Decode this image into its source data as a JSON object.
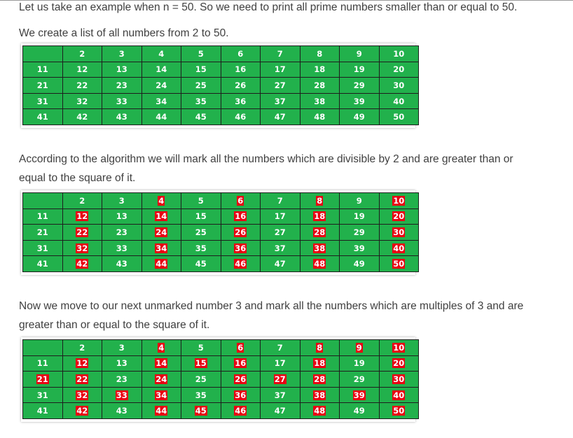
{
  "texts": {
    "p1": "Let us take an example when n = 50. So we need to print all prime numbers smaller than or equal to 50.",
    "p2": "We create a list of all numbers from 2 to 50.",
    "p3a": "According to the algorithm we will mark all the numbers which are divisible by 2 and are greater than or",
    "p3b": "equal to the square of it.",
    "p4a": "Now we move to our next unmarked number 3 and mark all the numbers which are multiples of 3 and are",
    "p4b": "greater than or equal to the square of it."
  },
  "colors": {
    "cell_bg": "#22b14c",
    "mark_bg": "#e80012",
    "text": "#ffffff",
    "border": "#1e1e1e"
  },
  "tables": [
    {
      "name": "all-numbers",
      "rows": [
        [
          "",
          "2",
          "3",
          "4",
          "5",
          "6",
          "7",
          "8",
          "9",
          "10"
        ],
        [
          "11",
          "12",
          "13",
          "14",
          "15",
          "16",
          "17",
          "18",
          "19",
          "20"
        ],
        [
          "21",
          "22",
          "23",
          "24",
          "25",
          "26",
          "27",
          "28",
          "29",
          "30"
        ],
        [
          "31",
          "32",
          "33",
          "34",
          "35",
          "36",
          "37",
          "38",
          "39",
          "40"
        ],
        [
          "41",
          "42",
          "43",
          "44",
          "45",
          "46",
          "47",
          "48",
          "49",
          "50"
        ]
      ],
      "marked": []
    },
    {
      "name": "multiples-of-2",
      "rows": [
        [
          "",
          "2",
          "3",
          "4",
          "5",
          "6",
          "7",
          "8",
          "9",
          "10"
        ],
        [
          "11",
          "12",
          "13",
          "14",
          "15",
          "16",
          "17",
          "18",
          "19",
          "20"
        ],
        [
          "21",
          "22",
          "23",
          "24",
          "25",
          "26",
          "27",
          "28",
          "29",
          "30"
        ],
        [
          "31",
          "32",
          "33",
          "34",
          "35",
          "36",
          "37",
          "38",
          "39",
          "40"
        ],
        [
          "41",
          "42",
          "43",
          "44",
          "45",
          "46",
          "47",
          "48",
          "49",
          "50"
        ]
      ],
      "marked": [
        "4",
        "6",
        "8",
        "10",
        "12",
        "14",
        "16",
        "18",
        "20",
        "22",
        "24",
        "26",
        "28",
        "30",
        "32",
        "34",
        "36",
        "38",
        "40",
        "42",
        "44",
        "46",
        "48",
        "50"
      ]
    },
    {
      "name": "multiples-of-3",
      "rows": [
        [
          "",
          "2",
          "3",
          "4",
          "5",
          "6",
          "7",
          "8",
          "9",
          "10"
        ],
        [
          "11",
          "12",
          "13",
          "14",
          "15",
          "16",
          "17",
          "18",
          "19",
          "20"
        ],
        [
          "21",
          "22",
          "23",
          "24",
          "25",
          "26",
          "27",
          "28",
          "29",
          "30"
        ],
        [
          "31",
          "32",
          "33",
          "34",
          "35",
          "36",
          "37",
          "38",
          "39",
          "40"
        ],
        [
          "41",
          "42",
          "43",
          "44",
          "45",
          "46",
          "47",
          "48",
          "49",
          "50"
        ]
      ],
      "marked": [
        "4",
        "6",
        "8",
        "9",
        "10",
        "12",
        "14",
        "15",
        "16",
        "18",
        "20",
        "21",
        "22",
        "24",
        "26",
        "27",
        "28",
        "30",
        "32",
        "33",
        "34",
        "36",
        "38",
        "39",
        "40",
        "42",
        "44",
        "45",
        "46",
        "48",
        "50"
      ]
    }
  ]
}
